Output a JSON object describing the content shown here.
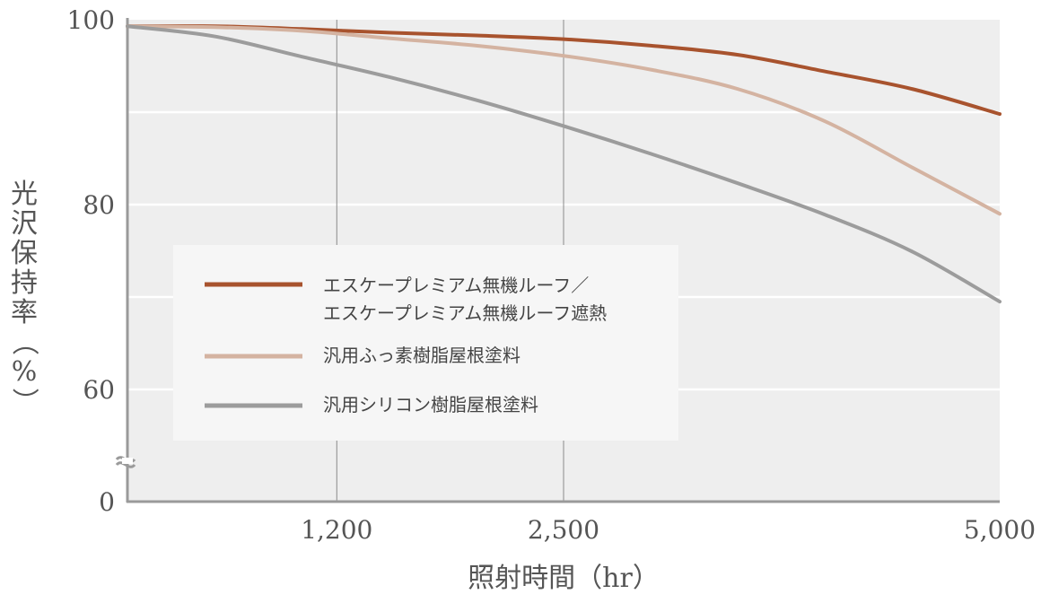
{
  "chart_data": {
    "type": "line",
    "xlabel": "照射時間（hr）",
    "ylabel": "光沢保持率（%）",
    "x_ticks": [
      {
        "value": 1200,
        "label": "1,200"
      },
      {
        "value": 2500,
        "label": "2,500"
      },
      {
        "value": 5000,
        "label": "5,000"
      }
    ],
    "y_ticks": [
      {
        "value": 100,
        "label": "100"
      },
      {
        "value": 80,
        "label": "80"
      },
      {
        "value": 60,
        "label": "60"
      },
      {
        "value": 0,
        "label": "0"
      }
    ],
    "xlim": [
      0,
      5000
    ],
    "ylim": [
      0,
      100
    ],
    "axis_break": "between 0 and 60 on y-axis",
    "grid": true,
    "legend_position": "center-left",
    "series": [
      {
        "name": "エスケープレミアム無機ルーフ／エスケープレミアム無機ルーフ遮熱",
        "color": "#a8532e",
        "x": [
          0,
          500,
          1000,
          1500,
          2000,
          2500,
          3000,
          3500,
          4000,
          4500,
          5000
        ],
        "y": [
          99.3,
          99.3,
          99.0,
          98.6,
          98.3,
          97.9,
          97.2,
          96.2,
          94.4,
          92.5,
          89.8
        ]
      },
      {
        "name": "汎用ふっ素樹脂屋根塗料",
        "color": "#d4b3a1",
        "x": [
          0,
          500,
          1000,
          1500,
          2000,
          2500,
          3000,
          3500,
          4000,
          4500,
          5000
        ],
        "y": [
          99.3,
          99.2,
          98.8,
          98.0,
          97.2,
          96.1,
          94.6,
          92.5,
          89.0,
          84.0,
          79.0
        ]
      },
      {
        "name": "汎用シリコン樹脂屋根塗料",
        "color": "#9c9c9c",
        "x": [
          0,
          500,
          1000,
          1500,
          2000,
          2500,
          3000,
          3500,
          4000,
          4500,
          5000
        ],
        "y": [
          99.3,
          98.2,
          96.0,
          93.8,
          91.3,
          88.5,
          85.5,
          82.3,
          78.9,
          74.9,
          69.5
        ]
      }
    ]
  }
}
